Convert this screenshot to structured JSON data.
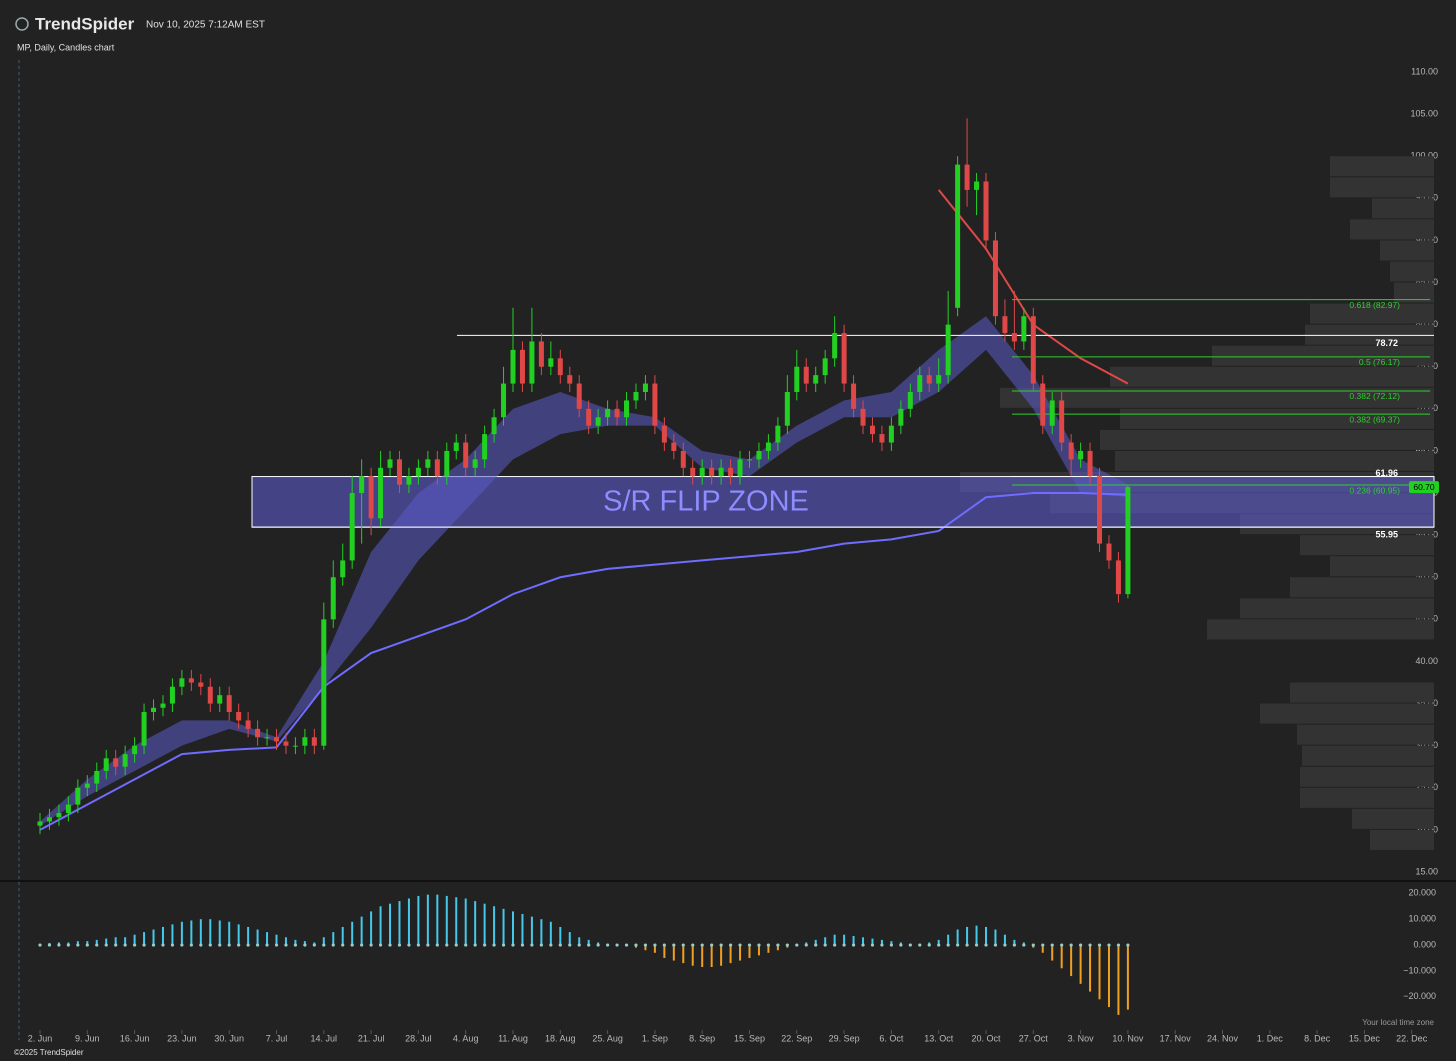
{
  "chart_data": {
    "type": "candlestick",
    "brand": "TrendSpider",
    "timestamp": "Nov 10, 2025 7:12AM EST",
    "title": "MP, Daily, Candles chart",
    "copyright": "©2025 TrendSpider",
    "timezone_note": "Your local time zone",
    "up_color": "#22d022",
    "down_color": "#e04848",
    "xticks": [
      "2. Jun",
      "9. Jun",
      "16. Jun",
      "23. Jun",
      "30. Jun",
      "7. Jul",
      "14. Jul",
      "21. Jul",
      "28. Jul",
      "4. Aug",
      "11. Aug",
      "18. Aug",
      "25. Aug",
      "1. Sep",
      "8. Sep",
      "15. Sep",
      "22. Sep",
      "29. Sep",
      "6. Oct",
      "13. Oct",
      "20. Oct",
      "27. Oct",
      "3. Nov",
      "10. Nov",
      "17. Nov",
      "24. Nov",
      "1. Dec",
      "8. Dec",
      "15. Dec",
      "22. Dec"
    ],
    "ylim": [
      15,
      110
    ],
    "yticks": [
      {
        "value": 110,
        "label": "110.00"
      },
      {
        "value": 105,
        "label": "105.00"
      },
      {
        "value": 100,
        "label": "100.00"
      },
      {
        "value": 95,
        "label": "95.00"
      },
      {
        "value": 90,
        "label": "90.00"
      },
      {
        "value": 85,
        "label": "85.00"
      },
      {
        "value": 80,
        "label": "80.00"
      },
      {
        "value": 75,
        "label": "75.00"
      },
      {
        "value": 70,
        "label": "70.00"
      },
      {
        "value": 65,
        "label": "65.00"
      },
      {
        "value": 60,
        "label": "60.00"
      },
      {
        "value": 55,
        "label": "55.00"
      },
      {
        "value": 50,
        "label": "50.00"
      },
      {
        "value": 45,
        "label": "45.00"
      },
      {
        "value": 40,
        "label": "40.00"
      },
      {
        "value": 35,
        "label": "35.00"
      },
      {
        "value": 30,
        "label": "30.00"
      },
      {
        "value": 25,
        "label": "25.00"
      },
      {
        "value": 20,
        "label": "20.00"
      },
      {
        "value": 15,
        "label": "15.00"
      }
    ],
    "candles": {
      "open": [
        20.5,
        21,
        21.5,
        22,
        23,
        25,
        25.5,
        27,
        28.5,
        27.5,
        29,
        30,
        34,
        34.5,
        35,
        37,
        38,
        37.5,
        37,
        35,
        36,
        34,
        33,
        32,
        31,
        31,
        30.5,
        30,
        30,
        31,
        30,
        45,
        50,
        52,
        60,
        62,
        57,
        63,
        64,
        61,
        62,
        63,
        64,
        62,
        65,
        66,
        63,
        64,
        67,
        69,
        73,
        77,
        73,
        78,
        75,
        76,
        74,
        73,
        70,
        68,
        69,
        70,
        69,
        71,
        72,
        73,
        68,
        66,
        65,
        63,
        62,
        63,
        62,
        63,
        62,
        64,
        64,
        65,
        66,
        68,
        72,
        75,
        73,
        74,
        76,
        79,
        73,
        70,
        68,
        67,
        66,
        68,
        70,
        72,
        74,
        73,
        74,
        82,
        99,
        96,
        97,
        90,
        81,
        79,
        78,
        81,
        73,
        68,
        71,
        66,
        64,
        65,
        62,
        54,
        52,
        48
      ],
      "high": [
        22,
        22.5,
        23,
        24,
        26,
        26.5,
        28,
        29.5,
        29.5,
        30,
        31,
        35,
        35.5,
        36,
        38,
        39,
        39,
        38.5,
        38,
        37,
        37,
        35,
        34,
        33,
        32,
        32,
        31.5,
        31,
        32,
        32,
        47,
        52,
        54,
        62,
        64,
        63,
        65,
        65,
        65,
        63,
        64,
        65,
        65,
        66,
        67,
        67,
        65,
        68,
        70,
        75,
        82,
        78,
        82,
        79,
        78,
        77,
        75,
        74,
        71,
        70,
        71,
        71,
        72,
        73,
        74,
        74,
        69,
        67,
        66,
        64,
        64,
        64,
        64,
        64,
        65,
        65,
        66,
        67,
        69,
        74,
        77,
        76,
        75,
        77,
        81,
        80,
        74,
        71,
        69,
        68,
        69,
        71,
        73,
        75,
        75,
        76,
        84,
        100,
        104.5,
        98,
        98,
        91,
        83,
        84,
        82,
        82,
        74,
        72,
        72,
        67,
        66,
        66,
        63,
        55,
        53,
        61
      ],
      "low": [
        19.5,
        20,
        20.5,
        21,
        22,
        24,
        24.5,
        26,
        26.5,
        26.5,
        28,
        29,
        33,
        33.5,
        34,
        36,
        36.5,
        36,
        34,
        34,
        33,
        32,
        31,
        30,
        30,
        29.5,
        29,
        29,
        29,
        29,
        29.5,
        44,
        49,
        51,
        54,
        55,
        56,
        62,
        60,
        60,
        61,
        62,
        61,
        61,
        64,
        62,
        62,
        63,
        66,
        68,
        72,
        72,
        72,
        74,
        74,
        73,
        72,
        69,
        67,
        67,
        68,
        68,
        68,
        70,
        71,
        67,
        65,
        64,
        62,
        61,
        61,
        61,
        61,
        61,
        61,
        63,
        63,
        64,
        65,
        67,
        71,
        72,
        72,
        73,
        75,
        72,
        69,
        67,
        66,
        65,
        65,
        67,
        69,
        71,
        72,
        72,
        73,
        81,
        94,
        93,
        89,
        80,
        78,
        77,
        77,
        72,
        67,
        67,
        65,
        62,
        63,
        61,
        53,
        51,
        47,
        47.5
      ],
      "close": [
        21,
        21.5,
        22,
        23,
        25,
        25.5,
        27,
        28.5,
        27.5,
        29,
        30,
        34,
        34.5,
        35,
        37,
        38,
        37.5,
        37,
        35,
        36,
        34,
        33,
        32,
        31,
        31,
        30.5,
        30,
        30,
        31,
        30,
        45,
        50,
        52,
        60,
        62,
        57,
        63,
        64,
        61,
        62,
        63,
        64,
        62,
        65,
        66,
        63,
        64,
        67,
        69,
        73,
        77,
        73,
        78,
        75,
        76,
        74,
        73,
        70,
        68,
        69,
        70,
        69,
        71,
        72,
        73,
        68,
        66,
        65,
        63,
        62,
        63,
        62,
        63,
        62,
        64,
        64,
        65,
        66,
        68,
        72,
        75,
        73,
        74,
        76,
        79,
        73,
        70,
        68,
        67,
        66,
        68,
        70,
        72,
        74,
        73,
        74,
        80,
        99,
        96,
        97,
        90,
        81,
        79,
        78,
        81,
        73,
        68,
        71,
        66,
        64,
        65,
        62,
        54,
        52,
        48,
        60.7
      ]
    },
    "moving_average": {
      "color": "#6f6cff",
      "values": [
        20,
        23,
        26,
        29,
        29.5,
        29.8,
        37,
        41,
        43,
        45,
        48,
        50,
        51,
        51.5,
        52,
        52.5,
        53,
        54,
        54.5,
        55.5,
        59.5,
        60,
        60,
        59.8
      ]
    },
    "cloud": {
      "color": "#5b5bc8",
      "upper": [
        21,
        26,
        30,
        33,
        33,
        31,
        40,
        53,
        60,
        64,
        70,
        72,
        70,
        69,
        65,
        64,
        68,
        71,
        72,
        77,
        81,
        74,
        64,
        61
      ],
      "lower": [
        20.5,
        24,
        27,
        30,
        32,
        30.5,
        37,
        44,
        52,
        58,
        64,
        67,
        68,
        68,
        63,
        62,
        66,
        69,
        69,
        72,
        77,
        70,
        60,
        59.5
      ]
    },
    "trailing_line": {
      "color": "#e04848",
      "values": [
        null,
        null,
        null,
        null,
        null,
        null,
        null,
        null,
        null,
        null,
        null,
        null,
        null,
        null,
        null,
        null,
        null,
        null,
        null,
        96,
        89,
        80,
        76,
        73
      ]
    },
    "zone": {
      "label": "S/R FLIP ZONE",
      "low": 55.95,
      "high": 61.96
    },
    "levels": [
      78.72,
      61.96,
      55.95
    ],
    "fib_levels": [
      {
        "label": "0.618 (82.97)",
        "value": 82.97
      },
      {
        "label": "0.5 (76.17)",
        "value": 76.17
      },
      {
        "label": "0.382 (72.12)",
        "value": 72.12
      },
      {
        "label": "0.382 (69.37)",
        "value": 69.37
      },
      {
        "label": "0.236 (60.95)",
        "value": 60.95
      }
    ],
    "fib_color": "#2fcf2f",
    "last_price": {
      "value": 60.7,
      "label": "60.70"
    },
    "volume_profile": {
      "color": "#333333",
      "bins": [
        17.5,
        20,
        22.5,
        25,
        27.5,
        30,
        32.5,
        35,
        37.5,
        40,
        42.5,
        45,
        47.5,
        50,
        52.5,
        55,
        57.5,
        60,
        62.5,
        65,
        67.5,
        70,
        72.5,
        75,
        77.5,
        80,
        82.5,
        85,
        87.5,
        90,
        92.5,
        95,
        97.5,
        100
      ],
      "values": [
        64,
        82,
        134,
        134,
        132,
        137,
        174,
        144,
        0,
        0,
        227,
        194,
        144,
        104,
        134,
        194,
        384,
        474,
        319,
        334,
        314,
        434,
        324,
        222,
        129,
        124,
        40,
        44,
        54,
        84,
        62,
        104,
        104
      ]
    },
    "oscillator": {
      "ylim": [
        -29,
        24
      ],
      "yticks": [
        {
          "value": 20,
          "label": "20.000"
        },
        {
          "value": 10,
          "label": "10.000"
        },
        {
          "value": 0,
          "label": "0.000"
        },
        {
          "value": -10,
          "label": "−10.000"
        },
        {
          "value": -20,
          "label": "−20.000"
        }
      ],
      "positive_color": "#45c8ea",
      "negative_color": "#f0a020",
      "values": [
        0.5,
        0.8,
        1,
        1,
        1.5,
        1.5,
        2,
        2.5,
        3,
        3,
        4,
        5,
        6,
        7,
        8,
        9,
        9.5,
        10,
        10,
        9.5,
        9,
        8,
        7,
        6,
        5,
        4,
        3,
        2,
        1.5,
        1,
        3,
        5,
        7,
        9,
        11,
        13,
        15,
        16,
        17,
        18,
        19,
        19.5,
        19.5,
        19,
        18.5,
        18,
        17,
        16,
        15,
        14,
        13,
        12,
        11,
        10,
        9,
        7,
        5,
        3,
        2,
        1,
        0.5,
        0,
        -0.5,
        -1,
        -2,
        -3,
        -5,
        -6,
        -7,
        -8,
        -8.5,
        -8.5,
        -8,
        -7,
        -6,
        -5,
        -4,
        -3,
        -2,
        -1,
        0,
        1,
        2,
        3,
        4,
        4,
        3.5,
        3,
        2.5,
        2,
        1.5,
        1,
        0.5,
        0.5,
        1,
        2,
        4,
        6,
        7,
        7.5,
        7,
        6,
        4,
        2,
        1,
        -1,
        -3,
        -6,
        -9,
        -12,
        -15,
        -18,
        -21,
        -24,
        -27,
        -25
      ]
    }
  }
}
